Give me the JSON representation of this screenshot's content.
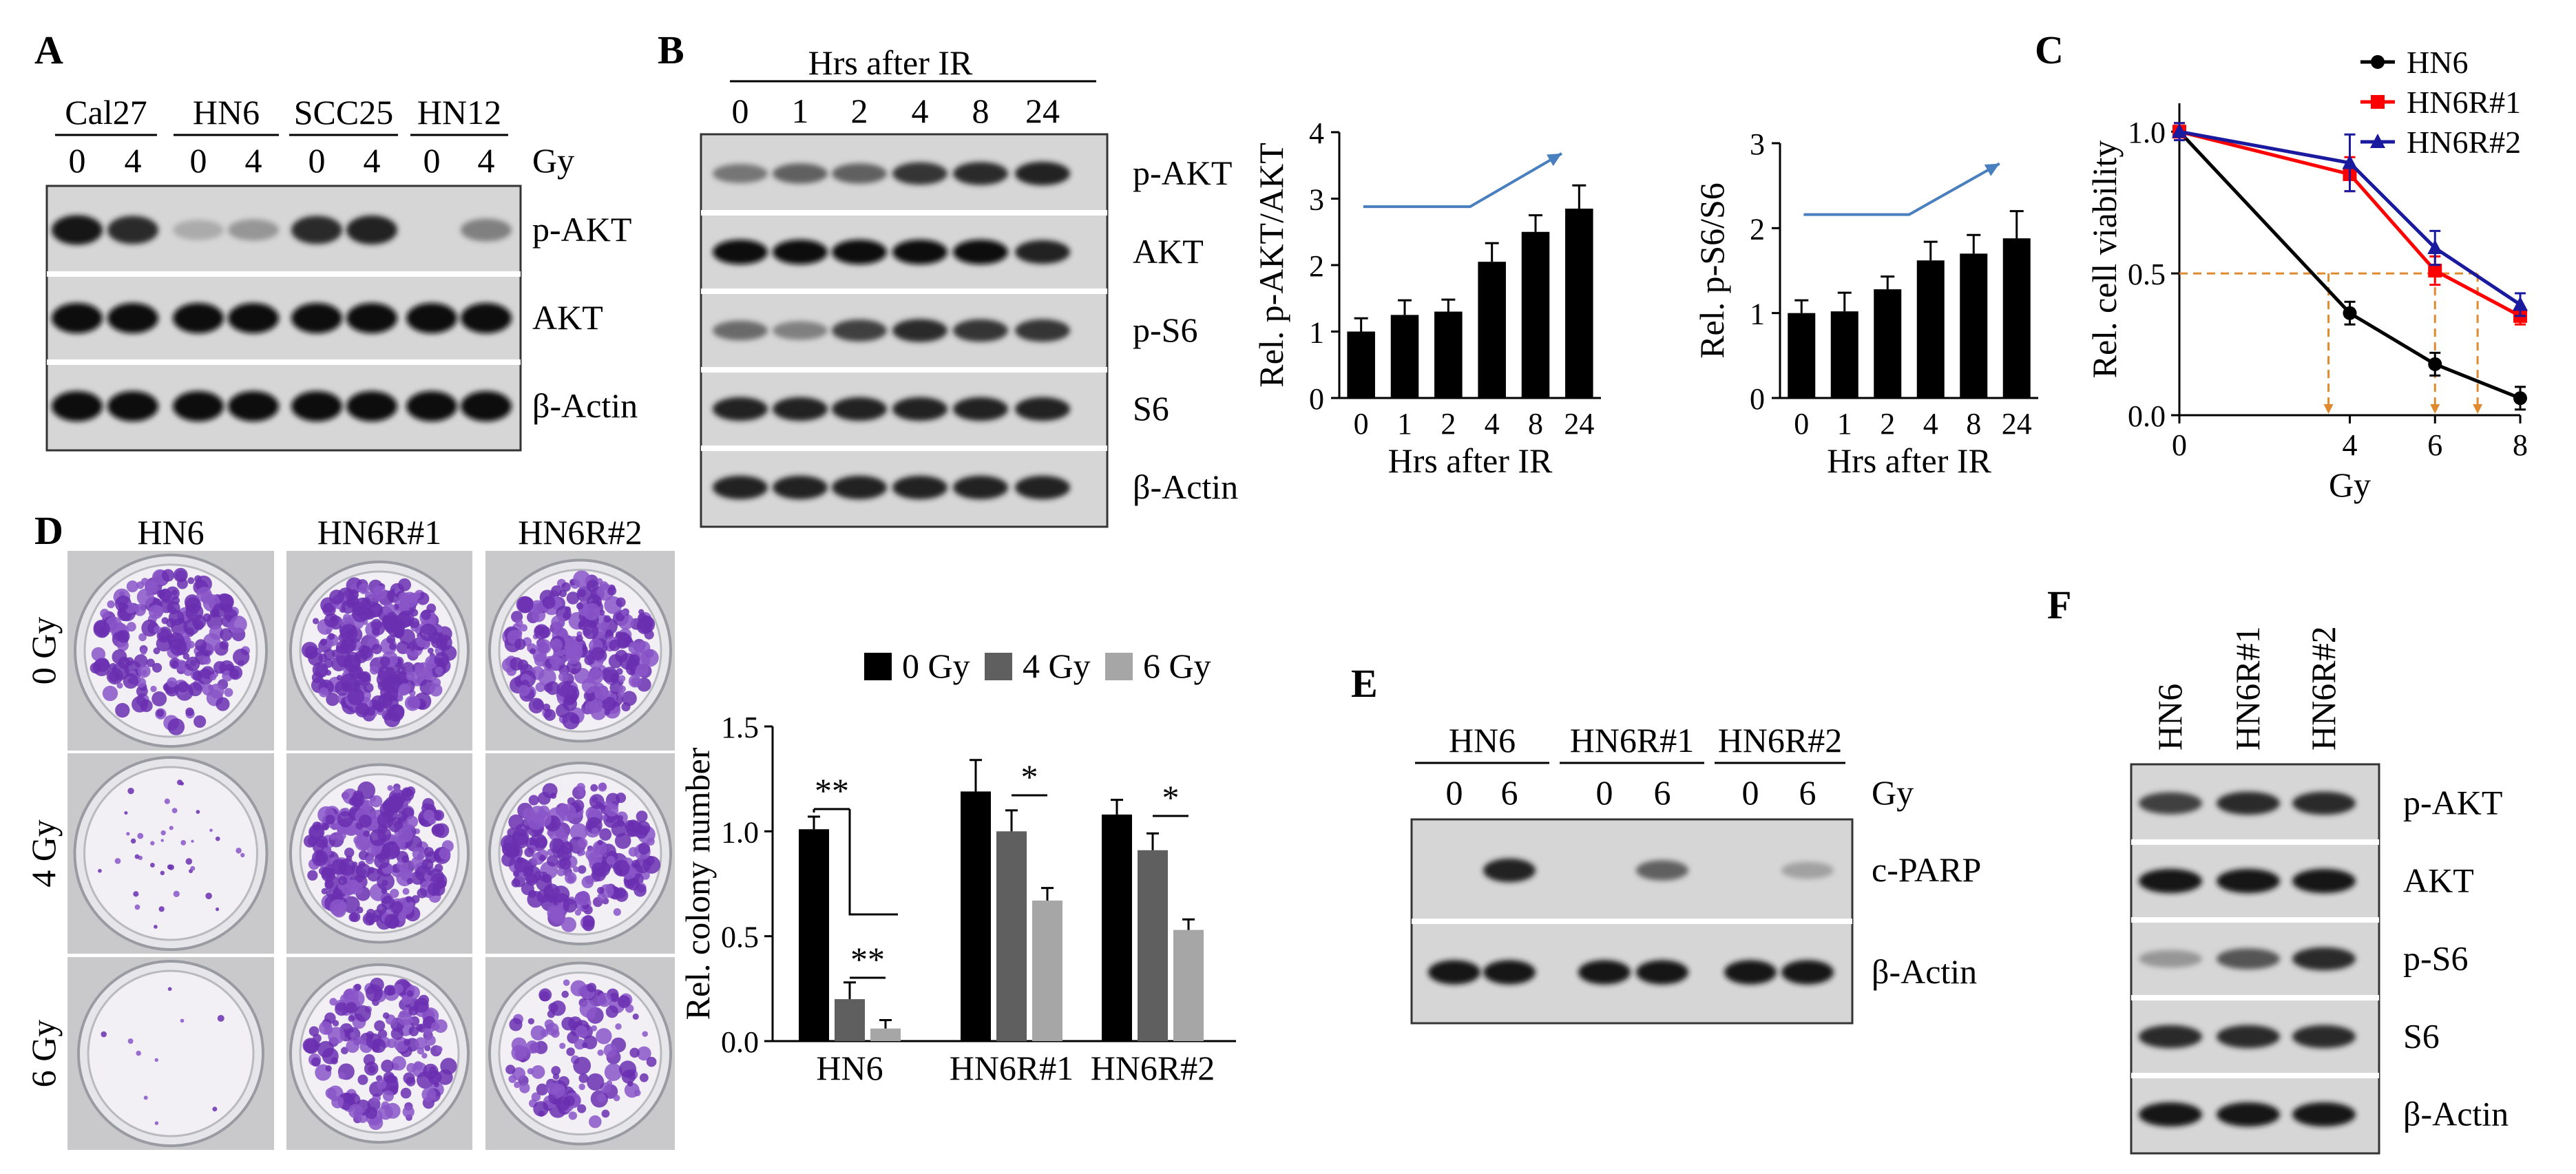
{
  "panels": {
    "A": {
      "label": "A",
      "groups": [
        "Cal27",
        "HN6",
        "SCC25",
        "HN12"
      ],
      "doses": [
        "0",
        "4",
        "0",
        "4",
        "0",
        "4",
        "0",
        "4"
      ],
      "dose_unit": "Gy",
      "rows": [
        "p-AKT",
        "AKT",
        "β-Actin"
      ],
      "intensities": {
        "p-AKT": [
          0.95,
          0.85,
          0.25,
          0.35,
          0.85,
          0.9,
          0.05,
          0.45
        ],
        "AKT": [
          1,
          1,
          1,
          1,
          1,
          1,
          1,
          1
        ],
        "β-Actin": [
          1,
          1,
          1,
          1,
          1,
          1,
          1,
          1
        ]
      }
    },
    "B": {
      "label": "B",
      "header": "Hrs after IR",
      "timepoints": [
        "0",
        "1",
        "2",
        "4",
        "8",
        "24"
      ],
      "rows": [
        "p-AKT",
        "AKT",
        "p-S6",
        "S6",
        "β-Actin"
      ],
      "intensities": {
        "p-AKT": [
          0.5,
          0.6,
          0.6,
          0.8,
          0.85,
          0.9
        ],
        "AKT": [
          1,
          1,
          1,
          1,
          1,
          0.9
        ],
        "p-S6": [
          0.55,
          0.45,
          0.75,
          0.85,
          0.8,
          0.8
        ],
        "S6": [
          0.9,
          0.9,
          0.9,
          0.9,
          0.9,
          0.9
        ],
        "β-Actin": [
          0.9,
          0.9,
          0.9,
          0.9,
          0.9,
          0.9
        ]
      }
    },
    "C": {
      "label": "C"
    },
    "D": {
      "label": "D",
      "columns": [
        "HN6",
        "HN6R#1",
        "HN6R#2"
      ],
      "rows": [
        "0 Gy",
        "4 Gy",
        "6 Gy"
      ],
      "colony_density": [
        [
          0.65,
          0.85,
          0.8
        ],
        [
          0.12,
          0.85,
          0.7
        ],
        [
          0.03,
          0.55,
          0.4
        ]
      ],
      "significance": [
        {
          "group": "HN6",
          "pair": "0-4",
          "label": "**"
        },
        {
          "group": "HN6",
          "pair": "4-6",
          "label": "**"
        },
        {
          "group": "HN6R#1",
          "pair": "4-6",
          "label": "*"
        },
        {
          "group": "HN6R#2",
          "pair": "4-6",
          "label": "*"
        }
      ]
    },
    "E": {
      "label": "E",
      "groups": [
        "HN6",
        "HN6R#1",
        "HN6R#2"
      ],
      "doses": [
        "0",
        "6",
        "0",
        "6",
        "0",
        "6"
      ],
      "dose_unit": "Gy",
      "rows": [
        "c-PARP",
        "β-Actin"
      ],
      "intensities": {
        "c-PARP": [
          0.0,
          0.9,
          0.05,
          0.6,
          0.0,
          0.3
        ],
        "β-Actin": [
          0.95,
          0.95,
          0.95,
          0.95,
          0.95,
          0.95
        ]
      }
    },
    "F": {
      "label": "F",
      "lanes": [
        "HN6",
        "HN6R#1",
        "HN6R#2"
      ],
      "rows": [
        "p-AKT",
        "AKT",
        "p-S6",
        "S6",
        "β-Actin"
      ],
      "intensities": {
        "p-AKT": [
          0.75,
          0.85,
          0.85
        ],
        "AKT": [
          0.95,
          0.95,
          0.95
        ],
        "p-S6": [
          0.35,
          0.65,
          0.85
        ],
        "S6": [
          0.85,
          0.85,
          0.85
        ],
        "β-Actin": [
          0.95,
          0.95,
          0.95
        ]
      }
    }
  },
  "chart_data": [
    {
      "id": "B-pAKT",
      "type": "bar",
      "categories": [
        "0",
        "1",
        "2",
        "4",
        "8",
        "24"
      ],
      "values": [
        1.0,
        1.25,
        1.3,
        2.05,
        2.5,
        2.85
      ],
      "errors": [
        0.2,
        0.22,
        0.18,
        0.28,
        0.25,
        0.35
      ],
      "ylabel": "Rel. p-AKT/AKT",
      "xlabel": "Hrs after IR",
      "ylim": [
        0,
        4
      ],
      "yticks": [
        "0",
        "1",
        "2",
        "3",
        "4"
      ],
      "bar_color": "#000000",
      "trend_color": "#4a7fbf"
    },
    {
      "id": "B-pS6",
      "type": "bar",
      "categories": [
        "0",
        "1",
        "2",
        "4",
        "8",
        "24"
      ],
      "values": [
        1.0,
        1.02,
        1.28,
        1.62,
        1.7,
        1.88
      ],
      "errors": [
        0.15,
        0.22,
        0.15,
        0.22,
        0.22,
        0.32
      ],
      "ylabel": "Rel. p-S6/S6",
      "xlabel": "Hrs after IR",
      "ylim": [
        0,
        3
      ],
      "yticks": [
        "0",
        "1",
        "2",
        "3"
      ],
      "bar_color": "#000000",
      "trend_color": "#4a7fbf"
    },
    {
      "id": "C",
      "type": "line",
      "x": [
        0,
        4,
        6,
        8
      ],
      "xticks": [
        "0",
        "4",
        "6",
        "8"
      ],
      "yticks": [
        "0.0",
        "0.5",
        "1.0"
      ],
      "series": [
        {
          "name": "HN6",
          "values": [
            1.0,
            0.36,
            0.18,
            0.06
          ],
          "errors": [
            0.03,
            0.04,
            0.04,
            0.04
          ],
          "color": "#000000",
          "marker": "circle"
        },
        {
          "name": "HN6R#1",
          "values": [
            1.0,
            0.85,
            0.51,
            0.35
          ],
          "errors": [
            0.03,
            0.06,
            0.05,
            0.03
          ],
          "color": "#ff0000",
          "marker": "square"
        },
        {
          "name": "HN6R#2",
          "values": [
            1.0,
            0.89,
            0.59,
            0.39
          ],
          "errors": [
            0.03,
            0.1,
            0.06,
            0.04
          ],
          "color": "#1a1a9e",
          "marker": "triangle"
        }
      ],
      "ylabel": "Rel. cell viability",
      "xlabel": "Gy",
      "ylim": [
        0,
        1.1
      ],
      "xlim": [
        0,
        8
      ],
      "reference_line": {
        "y": 0.5,
        "x_intercepts": [
          3.5,
          6.0,
          7.0
        ],
        "color": "#e08a30"
      }
    },
    {
      "id": "D",
      "type": "bar",
      "categories": [
        "HN6",
        "HN6R#1",
        "HN6R#2"
      ],
      "series": [
        {
          "name": "0 Gy",
          "values": [
            1.01,
            1.19,
            1.08
          ],
          "errors": [
            0.06,
            0.15,
            0.07
          ],
          "color": "#000000"
        },
        {
          "name": "4 Gy",
          "values": [
            0.2,
            1.0,
            0.91
          ],
          "errors": [
            0.08,
            0.1,
            0.08
          ],
          "color": "#5f5f5f"
        },
        {
          "name": "6 Gy",
          "values": [
            0.06,
            0.67,
            0.53
          ],
          "errors": [
            0.04,
            0.06,
            0.05
          ],
          "color": "#a6a6a6"
        }
      ],
      "ylabel": "Rel. colony number",
      "xlabel": "",
      "ylim": [
        0,
        1.5
      ],
      "yticks": [
        "0.0",
        "0.5",
        "1.0",
        "1.5"
      ]
    }
  ]
}
